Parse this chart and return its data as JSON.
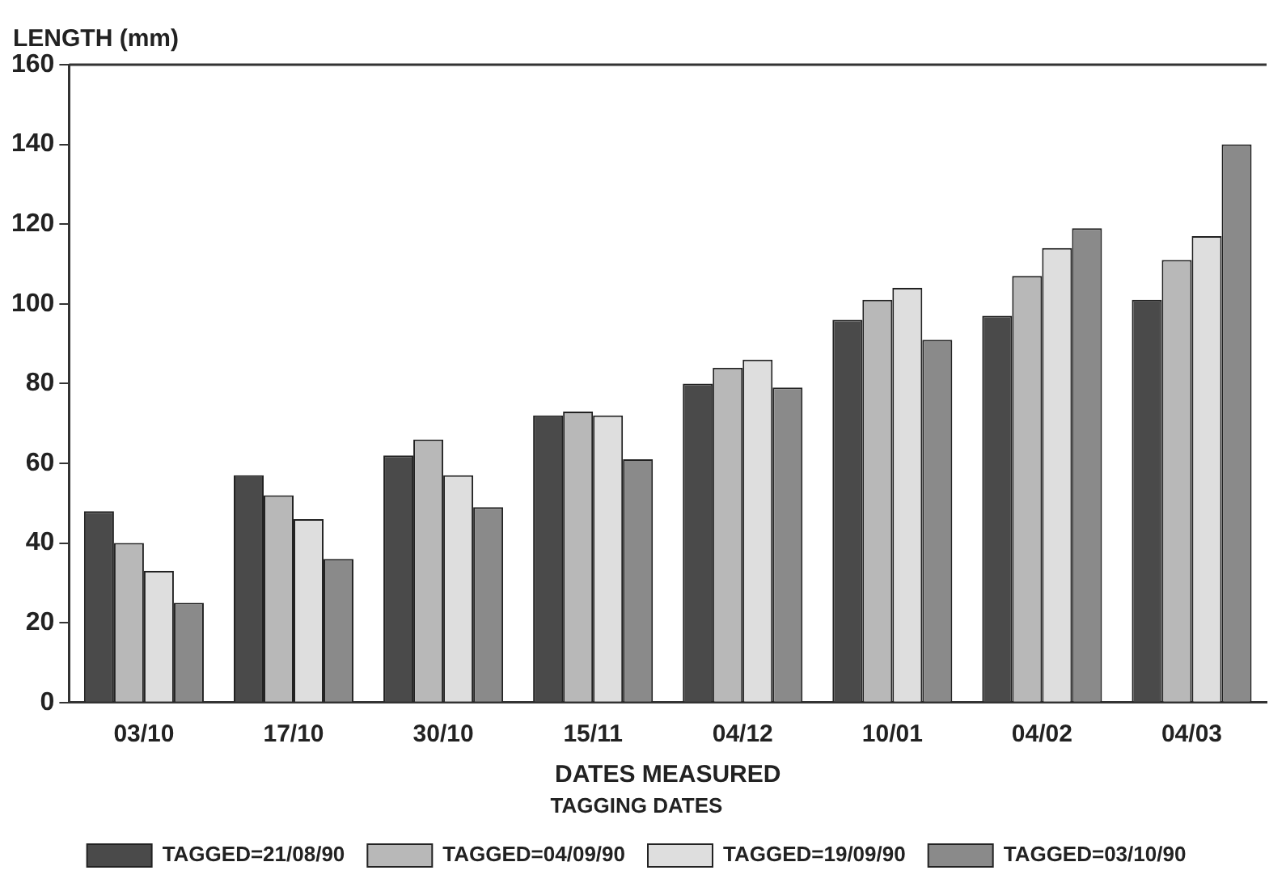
{
  "chart_data": {
    "type": "bar",
    "ylabel": "LENGTH (mm)",
    "xlabel": "DATES MEASURED",
    "legend_title": "TAGGING DATES",
    "legend": "bottom",
    "grid": false,
    "categories": [
      "03/10",
      "17/10",
      "30/10",
      "15/11",
      "04/12",
      "10/01",
      "04/02",
      "04/03"
    ],
    "ylim": [
      0,
      160
    ],
    "yticks": [
      0,
      20,
      40,
      60,
      80,
      100,
      120,
      140,
      160
    ],
    "series": [
      {
        "name": "TAGGED=21/08/90",
        "color": "#4a4a4a",
        "values": [
          48,
          57,
          62,
          72,
          80,
          96,
          97,
          101
        ]
      },
      {
        "name": "TAGGED=04/09/90",
        "color": "#b8b8b8",
        "values": [
          40,
          52,
          66,
          73,
          84,
          101,
          107,
          111
        ]
      },
      {
        "name": "TAGGED=19/09/90",
        "color": "#dedede",
        "values": [
          33,
          46,
          57,
          72,
          86,
          104,
          114,
          117
        ]
      },
      {
        "name": "TAGGED=03/10/90",
        "color": "#8a8a8a",
        "values": [
          25,
          36,
          49,
          61,
          79,
          91,
          119,
          140
        ]
      }
    ]
  }
}
